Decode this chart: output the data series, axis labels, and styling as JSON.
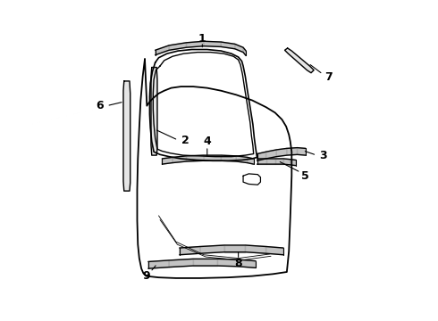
{
  "background_color": "#ffffff",
  "line_color": "#000000",
  "label_color": "#000000",
  "figsize": [
    4.9,
    3.6
  ],
  "dpi": 100,
  "hatch_color": "#aaaaaa",
  "fill_color": "#cccccc"
}
